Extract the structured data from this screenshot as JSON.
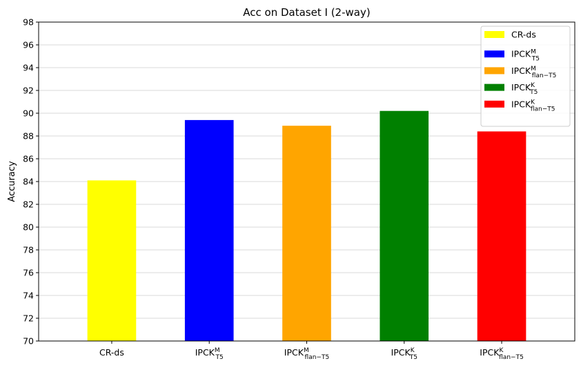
{
  "chart_data": {
    "type": "bar",
    "title": "Acc on Dataset I (2-way)",
    "xlabel": "",
    "ylabel": "Accuracy",
    "ylim": [
      70,
      98
    ],
    "yticks": [
      70,
      72,
      74,
      76,
      78,
      80,
      82,
      84,
      86,
      88,
      90,
      92,
      94,
      96,
      98
    ],
    "grid": "y",
    "legend_position": "top-right",
    "categories": [
      {
        "base": "CR-ds",
        "sup": "",
        "sub": ""
      },
      {
        "base": "IPCK",
        "sup": "M",
        "sub": "T5"
      },
      {
        "base": "IPCK",
        "sup": "M",
        "sub": "flan−T5"
      },
      {
        "base": "IPCK",
        "sup": "K",
        "sub": "T5"
      },
      {
        "base": "IPCK",
        "sup": "K",
        "sub": "flan−T5"
      }
    ],
    "values": [
      84.1,
      89.4,
      88.9,
      90.2,
      88.4
    ],
    "colors": [
      "#ffff00",
      "#0000ff",
      "#ffa500",
      "#008000",
      "#ff0000"
    ]
  }
}
